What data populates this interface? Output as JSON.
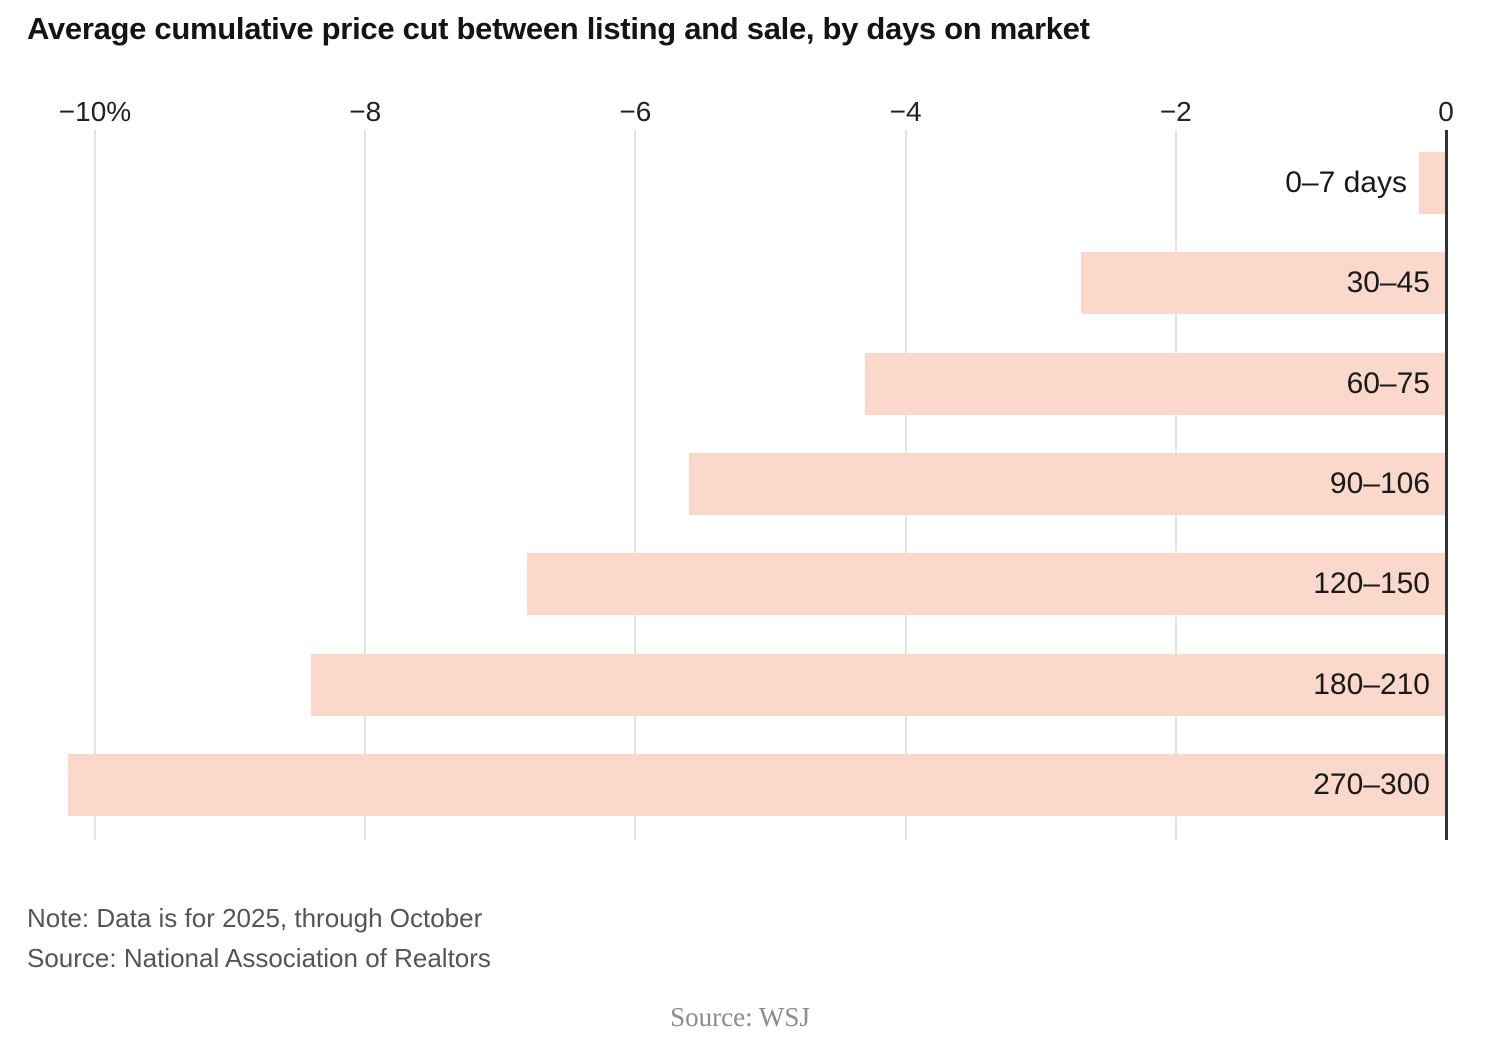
{
  "title": "Average cumulative price cut between listing and sale, by days on market",
  "chart_data": {
    "type": "bar",
    "orientation": "horizontal",
    "categories": [
      "0–7 days",
      "30–45",
      "60–75",
      "90–106",
      "120–150",
      "180–210",
      "270–300"
    ],
    "values": [
      -0.2,
      -2.7,
      -4.3,
      -5.6,
      -6.8,
      -8.4,
      -10.2
    ],
    "unit": "%",
    "xlabel": "",
    "ylabel": "",
    "xlim": [
      -10.2,
      0
    ],
    "x_ticks": [
      -10,
      -8,
      -6,
      -4,
      -2,
      0
    ],
    "x_tick_labels": [
      "−10%",
      "−8",
      "−6",
      "−4",
      "−2",
      "0"
    ],
    "grid": true,
    "legend": "none",
    "colors": {
      "bar": "#fad8cb",
      "gridline": "#e4e4e4",
      "zero_axis": "#333333",
      "title": "#141414",
      "tick_label": "#222222",
      "category_label": "#1a1a1a",
      "note": "#555555",
      "credit": "#8c8c8c"
    }
  },
  "footer": {
    "note": "Note: Data is for 2025, through October",
    "source": "Source: National Association of Realtors",
    "credit": "Source: WSJ"
  }
}
